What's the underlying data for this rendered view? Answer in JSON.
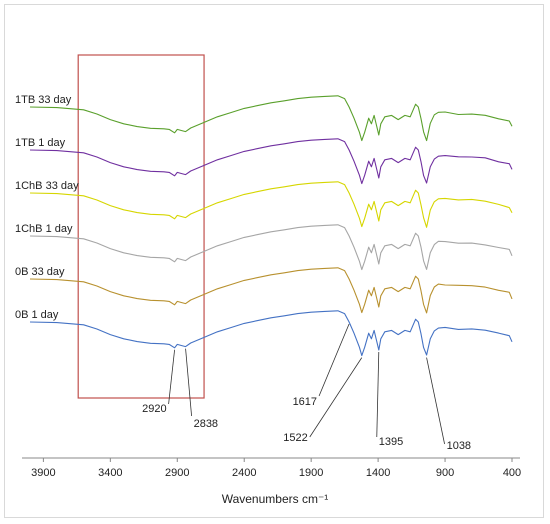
{
  "chart_data": {
    "type": "line",
    "xlabel": "Wavenumbers cm⁻¹",
    "ylabel": "",
    "xlim": [
      4000,
      400
    ],
    "x_reversed": true,
    "xticks": [
      3900,
      3400,
      2900,
      2400,
      1900,
      1400,
      900,
      400
    ],
    "grid": false,
    "legend": "inline-left",
    "series": [
      {
        "name": "1TB 33 day",
        "color": "#5aa02c",
        "offset": 5
      },
      {
        "name": "1TB 1 day",
        "color": "#7030a0",
        "offset": 4
      },
      {
        "name": "1ChB 33 day",
        "color": "#d6d600",
        "offset": 3
      },
      {
        "name": "1ChB 1 day",
        "color": "#a6a6a6",
        "offset": 2
      },
      {
        "name": "0B 33 day",
        "color": "#b8912f",
        "offset": 1
      },
      {
        "name": "0B 1 day",
        "color": "#4472c4",
        "offset": 0
      }
    ],
    "shape_points": [
      [
        4000,
        0.0
      ],
      [
        3800,
        -0.02
      ],
      [
        3600,
        -0.1
      ],
      [
        3500,
        -0.25
      ],
      [
        3400,
        -0.45
      ],
      [
        3300,
        -0.6
      ],
      [
        3200,
        -0.7
      ],
      [
        3100,
        -0.76
      ],
      [
        3000,
        -0.78
      ],
      [
        2960,
        -0.8
      ],
      [
        2920,
        -0.92
      ],
      [
        2900,
        -0.8
      ],
      [
        2870,
        -0.84
      ],
      [
        2838,
        -0.88
      ],
      [
        2800,
        -0.75
      ],
      [
        2700,
        -0.55
      ],
      [
        2600,
        -0.35
      ],
      [
        2500,
        -0.2
      ],
      [
        2400,
        -0.05
      ],
      [
        2300,
        0.05
      ],
      [
        2200,
        0.15
      ],
      [
        2100,
        0.22
      ],
      [
        2000,
        0.3
      ],
      [
        1900,
        0.35
      ],
      [
        1800,
        0.38
      ],
      [
        1700,
        0.4
      ],
      [
        1650,
        0.3
      ],
      [
        1617,
        0.0
      ],
      [
        1580,
        -0.4
      ],
      [
        1540,
        -0.9
      ],
      [
        1522,
        -1.2
      ],
      [
        1500,
        -0.9
      ],
      [
        1470,
        -0.4
      ],
      [
        1450,
        -0.6
      ],
      [
        1430,
        -0.3
      ],
      [
        1410,
        -0.7
      ],
      [
        1395,
        -1.0
      ],
      [
        1380,
        -0.6
      ],
      [
        1350,
        -0.35
      ],
      [
        1300,
        -0.3
      ],
      [
        1250,
        -0.45
      ],
      [
        1200,
        -0.3
      ],
      [
        1160,
        -0.35
      ],
      [
        1120,
        0.1
      ],
      [
        1100,
        0.0
      ],
      [
        1080,
        -0.4
      ],
      [
        1060,
        -0.9
      ],
      [
        1038,
        -1.2
      ],
      [
        1010,
        -0.6
      ],
      [
        980,
        -0.3
      ],
      [
        950,
        -0.2
      ],
      [
        900,
        -0.2
      ],
      [
        800,
        -0.25
      ],
      [
        700,
        -0.25
      ],
      [
        600,
        -0.3
      ],
      [
        500,
        -0.4
      ],
      [
        420,
        -0.5
      ],
      [
        400,
        -0.7
      ]
    ],
    "annotations": [
      {
        "text": "2920",
        "x": 2920
      },
      {
        "text": "2838",
        "x": 2838
      },
      {
        "text": "1617",
        "x": 1617
      },
      {
        "text": "1522",
        "x": 1522
      },
      {
        "text": "1395",
        "x": 1395
      },
      {
        "text": "1038",
        "x": 1038
      }
    ],
    "highlight_box": {
      "x_from": 3640,
      "x_to": 2700,
      "color": "#c0504d"
    }
  }
}
